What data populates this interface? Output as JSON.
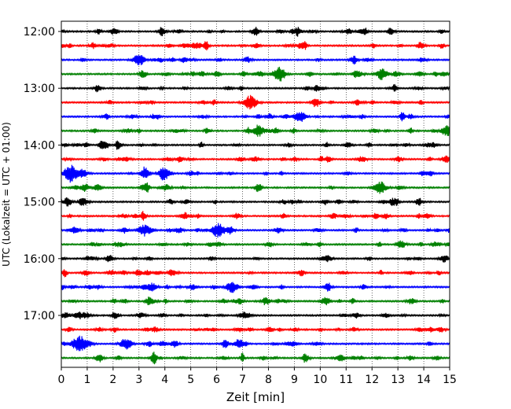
{
  "chart_data": {
    "type": "line",
    "title": "",
    "xlabel": "Zeit  [min]",
    "ylabel": "UTC (Lokalzeit = UTC + 01:00)",
    "xlim": [
      0,
      15
    ],
    "x_ticks": [
      "0",
      "1",
      "2",
      "3",
      "4",
      "5",
      "6",
      "7",
      "8",
      "9",
      "10",
      "11",
      "12",
      "13",
      "14",
      "15"
    ],
    "y_ticks": [
      "12:00",
      "13:00",
      "14:00",
      "15:00",
      "16:00",
      "17:00"
    ],
    "grid": "vertical dotted at each minute",
    "trace_interval_minutes": 15,
    "trace_colors": [
      "#000000",
      "#ff0000",
      "#0000ff",
      "#008000"
    ],
    "traces": [
      {
        "start": "12:00",
        "color": "#000000"
      },
      {
        "start": "12:15",
        "color": "#ff0000"
      },
      {
        "start": "12:30",
        "color": "#0000ff"
      },
      {
        "start": "12:45",
        "color": "#008000"
      },
      {
        "start": "13:00",
        "color": "#000000"
      },
      {
        "start": "13:15",
        "color": "#ff0000"
      },
      {
        "start": "13:30",
        "color": "#0000ff"
      },
      {
        "start": "13:45",
        "color": "#008000"
      },
      {
        "start": "14:00",
        "color": "#000000"
      },
      {
        "start": "14:15",
        "color": "#ff0000"
      },
      {
        "start": "14:30",
        "color": "#0000ff"
      },
      {
        "start": "14:45",
        "color": "#008000"
      },
      {
        "start": "15:00",
        "color": "#000000"
      },
      {
        "start": "15:15",
        "color": "#ff0000"
      },
      {
        "start": "15:30",
        "color": "#0000ff"
      },
      {
        "start": "15:45",
        "color": "#008000"
      },
      {
        "start": "16:00",
        "color": "#000000"
      },
      {
        "start": "16:15",
        "color": "#ff0000"
      },
      {
        "start": "16:30",
        "color": "#0000ff"
      },
      {
        "start": "16:45",
        "color": "#008000"
      },
      {
        "start": "17:00",
        "color": "#000000"
      },
      {
        "start": "17:15",
        "color": "#ff0000"
      },
      {
        "start": "17:30",
        "color": "#0000ff"
      },
      {
        "start": "17:45",
        "color": "#008000"
      }
    ],
    "events": [
      {
        "trace": "12:30",
        "minute": 3.0,
        "strength": 0.6
      },
      {
        "trace": "12:45",
        "minute": 8.4,
        "strength": 0.7
      },
      {
        "trace": "12:45",
        "minute": 12.4,
        "strength": 0.6
      },
      {
        "trace": "13:15",
        "minute": 7.3,
        "strength": 0.8
      },
      {
        "trace": "13:30",
        "minute": 9.2,
        "strength": 0.6
      },
      {
        "trace": "13:45",
        "minute": 7.6,
        "strength": 0.6
      },
      {
        "trace": "13:45",
        "minute": 14.9,
        "strength": 0.6
      },
      {
        "trace": "14:30",
        "minute": 0.4,
        "strength": 1.0
      },
      {
        "trace": "14:30",
        "minute": 4.0,
        "strength": 0.6
      },
      {
        "trace": "14:45",
        "minute": 12.3,
        "strength": 0.7
      },
      {
        "trace": "15:30",
        "minute": 3.2,
        "strength": 0.6
      },
      {
        "trace": "15:30",
        "minute": 6.1,
        "strength": 0.7
      },
      {
        "trace": "16:30",
        "minute": 6.6,
        "strength": 0.6
      },
      {
        "trace": "17:30",
        "minute": 0.7,
        "strength": 1.0
      },
      {
        "trace": "17:30",
        "minute": 2.5,
        "strength": 0.6
      }
    ]
  }
}
